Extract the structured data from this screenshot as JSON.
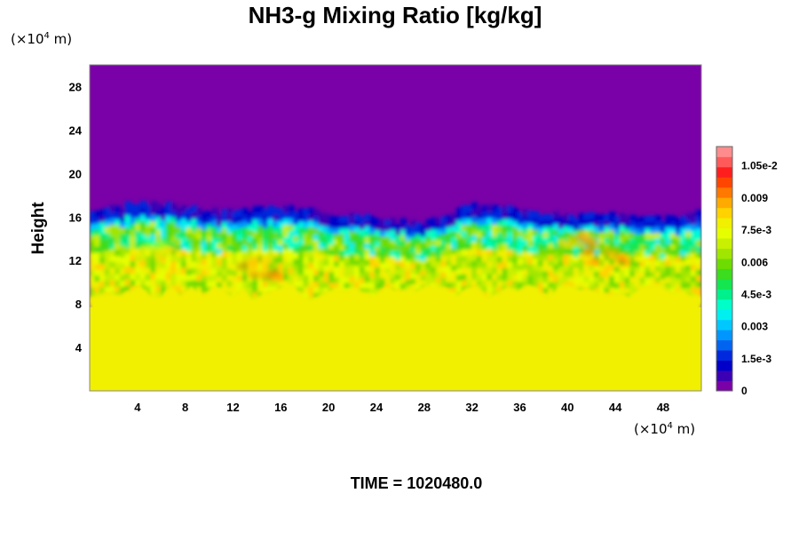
{
  "chart_data": {
    "type": "heatmap",
    "title": "NH3-g Mixing Ratio [kg/kg]",
    "ylabel": "Height",
    "xlabel": "",
    "x_unit": {
      "prefix": "(×10",
      "exponent": "4",
      "suffix": " m)"
    },
    "y_unit": {
      "prefix": "(×10",
      "exponent": "4",
      "suffix": " m)"
    },
    "xlim": [
      0,
      51.2
    ],
    "ylim": [
      0,
      30
    ],
    "x_ticks": [
      4,
      8,
      12,
      16,
      20,
      24,
      28,
      32,
      36,
      40,
      44,
      48
    ],
    "y_ticks": [
      4,
      8,
      12,
      16,
      20,
      24,
      28
    ],
    "x_tick_labels": [
      "4",
      "8",
      "12",
      "16",
      "20",
      "24",
      "28",
      "32",
      "36",
      "40",
      "44",
      "48"
    ],
    "y_tick_labels": [
      "4",
      "8",
      "12",
      "16",
      "20",
      "24",
      "28"
    ],
    "field": {
      "lower_layer_top": 9.2,
      "lower_layer_value": 0.0078,
      "cloud_top_profile_x": [
        0,
        4,
        8,
        12,
        16,
        20,
        24,
        28,
        32,
        36,
        40,
        44,
        48,
        51.2
      ],
      "cloud_top_profile_y": [
        16.8,
        17.2,
        17.0,
        16.4,
        16.9,
        16.3,
        15.9,
        15.4,
        17.0,
        16.6,
        16.0,
        16.3,
        15.8,
        16.6
      ],
      "upper_value": 0.0,
      "hot_spots": [
        {
          "x": 14.0,
          "y": 11.2,
          "value": 0.01
        },
        {
          "x": 43.0,
          "y": 12.5,
          "value": 0.0102
        },
        {
          "x": 41.0,
          "y": 14.2,
          "value": 0.0095
        },
        {
          "x": 6.0,
          "y": 13.0,
          "value": 0.0085
        }
      ]
    },
    "colorbar": {
      "vmin": 0,
      "vmax": 0.0114,
      "tick_values": [
        0,
        0.0015,
        0.003,
        0.0045,
        0.006,
        0.0075,
        0.009,
        0.0105
      ],
      "tick_labels": [
        "0",
        "1.5e-3",
        "0.003",
        "4.5e-3",
        "0.006",
        "7.5e-3",
        "0.009",
        "1.05e-2"
      ],
      "colors": [
        "#7a00a8",
        "#3c00b4",
        "#0000c8",
        "#0028dc",
        "#0064f0",
        "#0096ff",
        "#00c8ff",
        "#00f0f0",
        "#00ffc8",
        "#00f08c",
        "#14e650",
        "#3cdc1e",
        "#6edc00",
        "#a0e600",
        "#c8f000",
        "#e6ff00",
        "#f0f000",
        "#ffd200",
        "#ffaa00",
        "#ff7800",
        "#ff4600",
        "#ff1e1e",
        "#ff5a5a",
        "#ff8c8c"
      ]
    }
  },
  "footer": {
    "text": "TIME = 1020480.0"
  }
}
